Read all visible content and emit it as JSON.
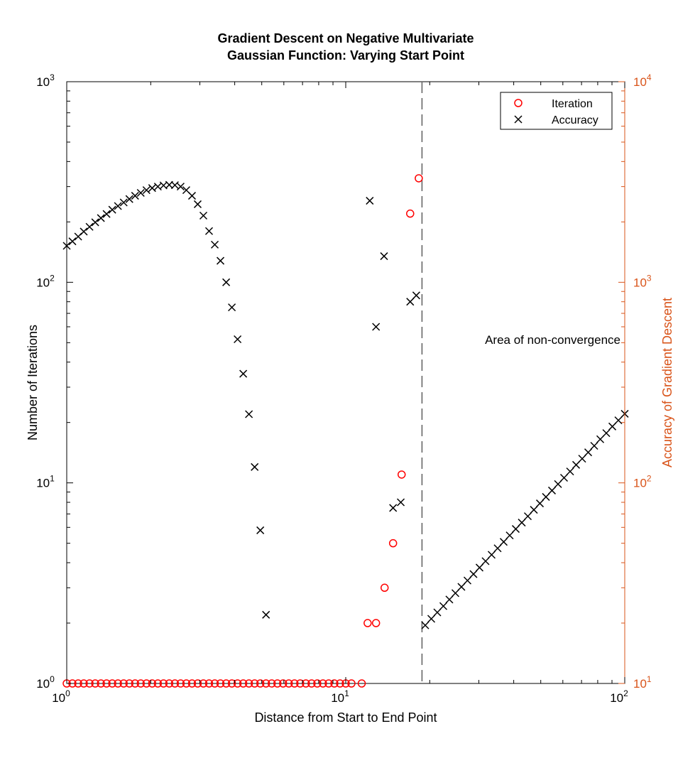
{
  "chart_data": {
    "type": "scatter",
    "title_lines": [
      "Gradient Descent on Negative Multivariate",
      "Gaussian Function: Varying Start Point"
    ],
    "xlabel": "Distance from Start to End Point",
    "ylabel_left": "Number of Iterations",
    "ylabel_right": "Accuracy of Gradient Descent",
    "x_scale": "log",
    "y_left_scale": "log",
    "y_right_scale": "log",
    "xlim": [
      1,
      100
    ],
    "ylim_left": [
      1,
      1000
    ],
    "ylim_right": [
      10,
      10000
    ],
    "x_ticks": [
      {
        "base": "10",
        "exp": "0"
      },
      {
        "base": "10",
        "exp": "1"
      },
      {
        "base": "10",
        "exp": "2"
      }
    ],
    "y_left_ticks": [
      {
        "base": "10",
        "exp": "0"
      },
      {
        "base": "10",
        "exp": "1"
      },
      {
        "base": "10",
        "exp": "2"
      },
      {
        "base": "10",
        "exp": "3"
      }
    ],
    "y_right_ticks": [
      {
        "base": "10",
        "exp": "1"
      },
      {
        "base": "10",
        "exp": "2"
      },
      {
        "base": "10",
        "exp": "3"
      },
      {
        "base": "10",
        "exp": "4"
      }
    ],
    "grid": false,
    "legend_position": "top-right",
    "colors": {
      "iteration": "#ff0000",
      "accuracy": "#000000",
      "right_axis": "#d9541a",
      "divider": "#666666"
    },
    "series": [
      {
        "name": "Iteration",
        "marker": "circle",
        "axis": "left",
        "points": [
          [
            1.0,
            1
          ],
          [
            1.048,
            1
          ],
          [
            1.099,
            1
          ],
          [
            1.151,
            1
          ],
          [
            1.207,
            1
          ],
          [
            1.265,
            1
          ],
          [
            1.326,
            1
          ],
          [
            1.389,
            1
          ],
          [
            1.456,
            1
          ],
          [
            1.526,
            1
          ],
          [
            1.6,
            1
          ],
          [
            1.677,
            1
          ],
          [
            1.758,
            1
          ],
          [
            1.842,
            1
          ],
          [
            1.931,
            1
          ],
          [
            2.024,
            1
          ],
          [
            2.121,
            1
          ],
          [
            2.223,
            1
          ],
          [
            2.33,
            1
          ],
          [
            2.442,
            1
          ],
          [
            2.56,
            1
          ],
          [
            2.683,
            1
          ],
          [
            2.812,
            1
          ],
          [
            2.947,
            1
          ],
          [
            3.089,
            1
          ],
          [
            3.237,
            1
          ],
          [
            3.393,
            1
          ],
          [
            3.556,
            1
          ],
          [
            3.728,
            1
          ],
          [
            3.907,
            1
          ],
          [
            4.095,
            1
          ],
          [
            4.292,
            1
          ],
          [
            4.498,
            1
          ],
          [
            4.715,
            1
          ],
          [
            4.941,
            1
          ],
          [
            5.179,
            1
          ],
          [
            5.428,
            1
          ],
          [
            5.689,
            1
          ],
          [
            5.963,
            1
          ],
          [
            6.25,
            1
          ],
          [
            6.551,
            1
          ],
          [
            6.866,
            1
          ],
          [
            7.197,
            1
          ],
          [
            7.543,
            1
          ],
          [
            7.906,
            1
          ],
          [
            8.286,
            1
          ],
          [
            8.685,
            1
          ],
          [
            9.103,
            1
          ],
          [
            9.541,
            1
          ],
          [
            10.0,
            1
          ],
          [
            10.48,
            1
          ],
          [
            11.41,
            1
          ],
          [
            11.98,
            2
          ],
          [
            12.84,
            2
          ],
          [
            13.78,
            3
          ],
          [
            14.78,
            5
          ],
          [
            15.86,
            11
          ],
          [
            17.02,
            220
          ],
          [
            18.27,
            330
          ]
        ]
      },
      {
        "name": "Accuracy",
        "marker": "x",
        "axis": "right",
        "points": [
          [
            1.0,
            1520
          ],
          [
            1.048,
            1600
          ],
          [
            1.099,
            1690
          ],
          [
            1.151,
            1790
          ],
          [
            1.207,
            1890
          ],
          [
            1.265,
            1990
          ],
          [
            1.326,
            2090
          ],
          [
            1.389,
            2190
          ],
          [
            1.456,
            2300
          ],
          [
            1.526,
            2400
          ],
          [
            1.6,
            2500
          ],
          [
            1.677,
            2600
          ],
          [
            1.758,
            2700
          ],
          [
            1.842,
            2790
          ],
          [
            1.931,
            2880
          ],
          [
            2.024,
            2950
          ],
          [
            2.121,
            3000
          ],
          [
            2.223,
            3040
          ],
          [
            2.33,
            3060
          ],
          [
            2.442,
            3050
          ],
          [
            2.56,
            3000
          ],
          [
            2.683,
            2880
          ],
          [
            2.812,
            2700
          ],
          [
            2.947,
            2450
          ],
          [
            3.089,
            2150
          ],
          [
            3.237,
            1800
          ],
          [
            3.393,
            1540
          ],
          [
            3.556,
            1280
          ],
          [
            3.728,
            1000
          ],
          [
            3.907,
            750
          ],
          [
            4.095,
            520
          ],
          [
            4.292,
            350
          ],
          [
            4.498,
            220
          ],
          [
            4.715,
            120
          ],
          [
            4.941,
            58
          ],
          [
            5.179,
            22
          ],
          [
            12.19,
            2550
          ],
          [
            12.84,
            600
          ],
          [
            13.72,
            1350
          ],
          [
            14.78,
            75
          ],
          [
            15.75,
            80
          ],
          [
            17.02,
            800
          ],
          [
            17.9,
            860
          ],
          [
            19.27,
            19.5
          ],
          [
            20.26,
            21.0
          ],
          [
            21.29,
            22.6
          ],
          [
            22.38,
            24.3
          ],
          [
            23.52,
            26.2
          ],
          [
            24.72,
            28.2
          ],
          [
            25.98,
            30.3
          ],
          [
            27.31,
            32.6
          ],
          [
            28.7,
            35.1
          ],
          [
            30.17,
            37.8
          ],
          [
            31.71,
            40.7
          ],
          [
            33.33,
            43.8
          ],
          [
            35.03,
            47.2
          ],
          [
            36.82,
            50.8
          ],
          [
            38.7,
            54.7
          ],
          [
            40.68,
            58.9
          ],
          [
            42.76,
            63.4
          ],
          [
            44.94,
            68.2
          ],
          [
            47.24,
            73.4
          ],
          [
            49.65,
            79.0
          ],
          [
            52.19,
            85.1
          ],
          [
            54.85,
            91.6
          ],
          [
            57.66,
            98.6
          ],
          [
            60.6,
            106
          ],
          [
            63.7,
            114
          ],
          [
            66.95,
            123
          ],
          [
            70.37,
            132
          ],
          [
            73.96,
            142
          ],
          [
            77.74,
            153
          ],
          [
            81.71,
            165
          ],
          [
            85.88,
            177
          ],
          [
            90.27,
            191
          ],
          [
            94.88,
            205
          ],
          [
            100.0,
            221
          ]
        ]
      }
    ],
    "annotations": [
      {
        "id": "nonconv",
        "text": "Area of non-convergence"
      }
    ]
  }
}
